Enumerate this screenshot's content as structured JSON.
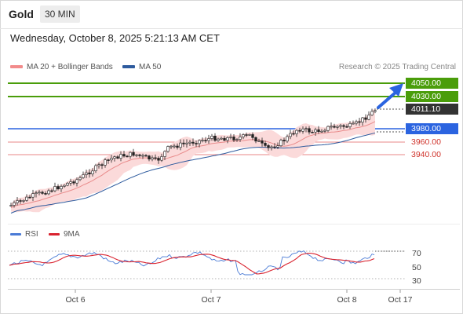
{
  "header": {
    "symbol": "Gold",
    "timeframe": "30 MIN"
  },
  "datetime": "Wednesday, October 8, 2025 5:21:13 AM CET",
  "legend": {
    "ma20": "MA 20 + Bollinger Bands",
    "ma50": "MA 50",
    "credit": "Research © 2025 Trading Central"
  },
  "price_labels": {
    "r2": "4050.00",
    "r1": "4030.00",
    "last": "4011.10",
    "pivot": "3980.00",
    "s1": "3960.00",
    "s2": "3940.00"
  },
  "rsi_legend": {
    "rsi": "RSI",
    "ma": "9MA"
  },
  "rsi_levels": [
    "70",
    "50",
    "30"
  ],
  "x_labels": [
    "Oct 6",
    "Oct 7",
    "Oct 8",
    "Oct 17"
  ],
  "colors": {
    "resistance": "#4a9d0a",
    "pivot": "#2b64e0",
    "support": "#d0342c",
    "candle": "#222222",
    "bollinger_fill": "#f9d6d6",
    "ma20": "#e98c8c",
    "ma50": "#2e5b9e",
    "rsi": "#4a7bd6",
    "rsi_ma": "#d9232f",
    "arrow": "#2b64e0"
  }
}
